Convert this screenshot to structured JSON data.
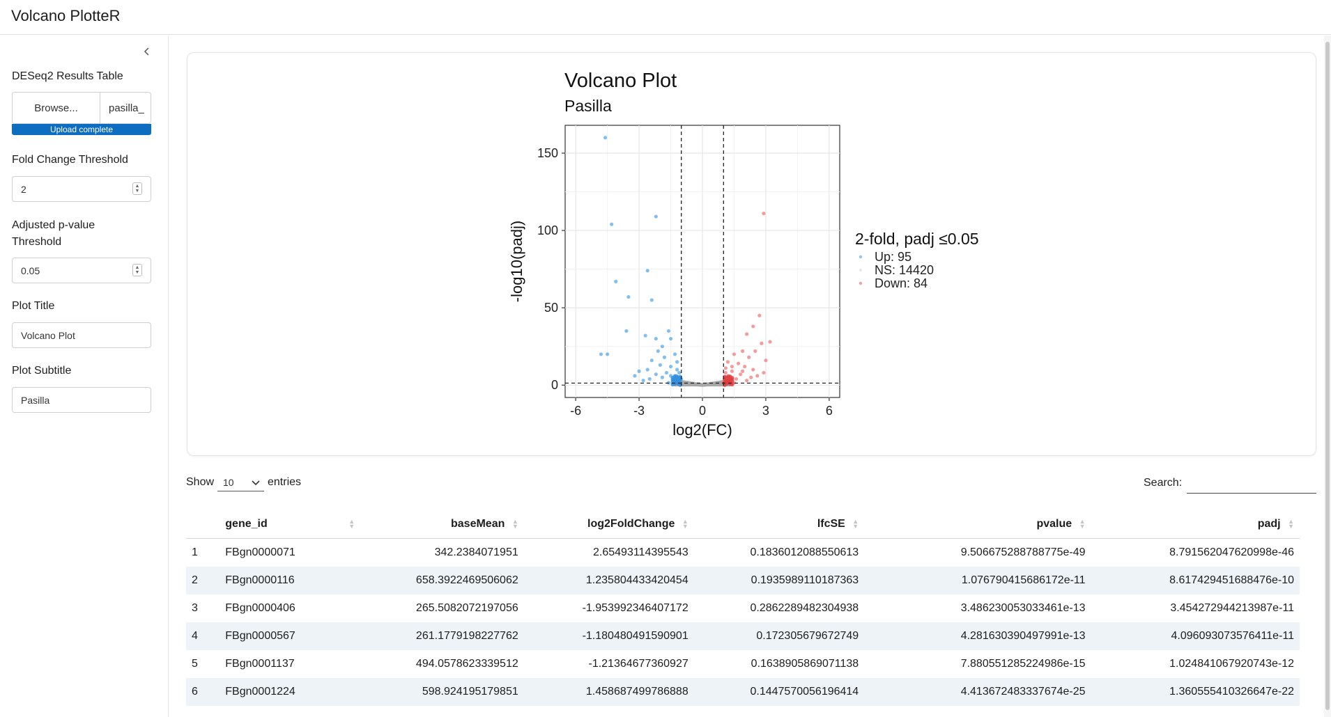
{
  "app": {
    "title": "Volcano PlotteR"
  },
  "sidebar": {
    "results_label": "DESeq2 Results Table",
    "browse_label": "Browse...",
    "file_name": "pasilla_",
    "upload_status": "Upload complete",
    "fc_label": "Fold Change Threshold",
    "fc_value": "2",
    "padj_label_line1": "Adjusted p-value",
    "padj_label_line2": "Threshold",
    "padj_value": "0.05",
    "title_label": "Plot Title",
    "title_value": "Volcano Plot",
    "subtitle_label": "Plot Subtitle",
    "subtitle_value": "Pasilla"
  },
  "chart_data": {
    "type": "scatter",
    "title": "Volcano Plot",
    "subtitle": "Pasilla",
    "xlabel": "log2(FC)",
    "ylabel": "-log10(padj)",
    "xlim": [
      -6.5,
      6.5
    ],
    "ylim": [
      -8,
      168
    ],
    "xticks": [
      -6,
      -3,
      0,
      3,
      6
    ],
    "yticks": [
      0,
      50,
      100,
      150
    ],
    "grid": true,
    "thresholds": {
      "x": [
        -1,
        1
      ],
      "y": 1.3
    },
    "legend": {
      "title": "2-fold, padj ≤0.05",
      "position": "right",
      "entries": [
        {
          "label": "Up: 95",
          "color": "#8fc3f0"
        },
        {
          "label": "NS: 14420",
          "color": "#e9e9e9"
        },
        {
          "label": "Down: 84",
          "color": "#f2a3a3"
        }
      ]
    },
    "series": [
      {
        "name": "Up",
        "color": "#5aa9e6",
        "points": [
          [
            -4.6,
            160
          ],
          [
            -4.3,
            104
          ],
          [
            -2.2,
            109
          ],
          [
            -2.6,
            74
          ],
          [
            -4.1,
            67
          ],
          [
            -3.5,
            57
          ],
          [
            -2.4,
            55
          ],
          [
            -3.6,
            35
          ],
          [
            -4.8,
            20
          ],
          [
            -4.5,
            20
          ],
          [
            -2.7,
            32
          ],
          [
            -2.2,
            30
          ],
          [
            -1.6,
            35
          ],
          [
            -1.5,
            30
          ],
          [
            -1.9,
            25
          ],
          [
            -2.1,
            22
          ],
          [
            -1.3,
            20
          ],
          [
            -1.8,
            18
          ],
          [
            -2.4,
            16
          ],
          [
            -1.2,
            15
          ],
          [
            -2.0,
            13
          ],
          [
            -1.5,
            12
          ],
          [
            -2.6,
            10
          ],
          [
            -3.0,
            9
          ],
          [
            -1.1,
            8
          ],
          [
            -1.7,
            8
          ],
          [
            -2.2,
            7
          ],
          [
            -1.3,
            6
          ],
          [
            -1.9,
            5
          ],
          [
            -2.5,
            4
          ],
          [
            -1.4,
            3
          ],
          [
            -1.1,
            2
          ],
          [
            -1.6,
            1.5
          ],
          [
            -2.8,
            3
          ],
          [
            -3.2,
            6
          ],
          [
            -1.2,
            10
          ],
          [
            -1.0,
            4
          ],
          [
            -1.5,
            6
          ]
        ]
      },
      {
        "name": "Down",
        "color": "#f07b7b",
        "points": [
          [
            2.9,
            111
          ],
          [
            2.7,
            45
          ],
          [
            2.4,
            38
          ],
          [
            2.1,
            33
          ],
          [
            3.2,
            28
          ],
          [
            2.8,
            27
          ],
          [
            2.5,
            22
          ],
          [
            1.9,
            22
          ],
          [
            1.5,
            20
          ],
          [
            2.2,
            18
          ],
          [
            3.0,
            16
          ],
          [
            1.2,
            15
          ],
          [
            1.7,
            14
          ],
          [
            2.0,
            12
          ],
          [
            2.4,
            10
          ],
          [
            1.4,
            9
          ],
          [
            1.1,
            8
          ],
          [
            1.8,
            7
          ],
          [
            2.6,
            6
          ],
          [
            1.3,
            5
          ],
          [
            1.6,
            4
          ],
          [
            2.1,
            3
          ],
          [
            1.2,
            2
          ],
          [
            1.0,
            1.5
          ],
          [
            1.5,
            1.5
          ],
          [
            2.9,
            8
          ],
          [
            2.3,
            5
          ],
          [
            1.1,
            11
          ],
          [
            1.9,
            9
          ],
          [
            1.4,
            12
          ]
        ]
      }
    ]
  },
  "table": {
    "show_label": "Show",
    "length_value": "10",
    "entries_label": "entries",
    "search_label": "Search:",
    "columns": [
      "",
      "gene_id",
      "baseMean",
      "log2FoldChange",
      "lfcSE",
      "pvalue",
      "padj"
    ],
    "rows": [
      [
        "1",
        "FBgn0000071",
        "342.2384071951",
        "2.65493114395543",
        "0.1836012088550613",
        "9.506675288788775e-49",
        "8.791562047620998e-46"
      ],
      [
        "2",
        "FBgn0000116",
        "658.3922469506062",
        "1.235804433420454",
        "0.1935989110187363",
        "1.076790415686172e-11",
        "8.617429451688476e-10"
      ],
      [
        "3",
        "FBgn0000406",
        "265.5082072197056",
        "-1.953992346407172",
        "0.2862289482304938",
        "3.486230053033461e-13",
        "3.454272944213987e-11"
      ],
      [
        "4",
        "FBgn0000567",
        "261.1779198227762",
        "-1.180480491590901",
        "0.172305679672749",
        "4.281630390497991e-13",
        "4.096093073576411e-11"
      ],
      [
        "5",
        "FBgn0001137",
        "494.0578623339512",
        "-1.21364677360927",
        "0.1638905869071138",
        "7.880551285224986e-15",
        "1.024841067920743e-12"
      ],
      [
        "6",
        "FBgn0001224",
        "598.924195179851",
        "1.458687499786888",
        "0.1447570056196414",
        "4.413672483337674e-25",
        "1.360555410326647e-22"
      ]
    ]
  }
}
